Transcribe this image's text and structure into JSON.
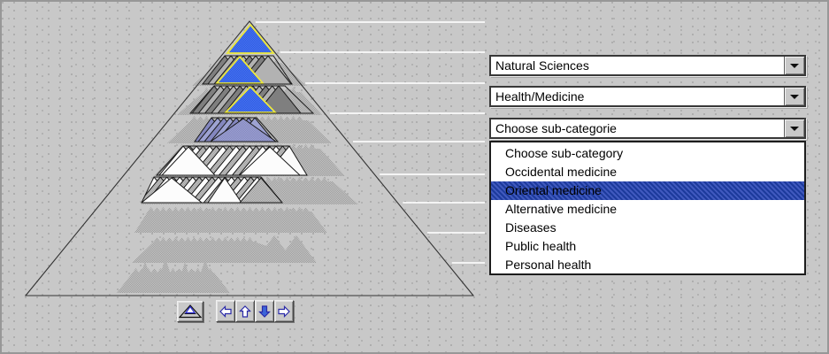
{
  "combos": [
    {
      "value": "Natural Sciences"
    },
    {
      "value": "Health/Medicine"
    },
    {
      "value": "Choose sub-categorie"
    }
  ],
  "list": {
    "items": [
      "Choose sub-category",
      "Occidental medicine",
      "Oriental medicine",
      "Alternative medicine",
      "Diseases",
      "Public health",
      "Personal health"
    ],
    "selected_index": 2,
    "selected_item": "Oriental medicine"
  },
  "toolbar": {
    "buttons": [
      {
        "icon": "pyramid-overview-icon"
      },
      {
        "icon": "arrow-left-icon"
      },
      {
        "icon": "arrow-up-icon"
      },
      {
        "icon": "arrow-down-icon"
      },
      {
        "icon": "arrow-right-icon"
      }
    ]
  },
  "pyramid": {
    "levels": 9,
    "leader_lines": 9,
    "selected_path_levels": 3
  },
  "colors": {
    "accent_blue": "#2c58e0",
    "accent_blue_light": "#4a76f2",
    "selection_yellow": "#ece73c",
    "lavender": "#8487bf",
    "lavender_light": "#9da2d2",
    "list_highlight_navy": "#1c3a9c",
    "window_bg": "#c8c8c8"
  }
}
